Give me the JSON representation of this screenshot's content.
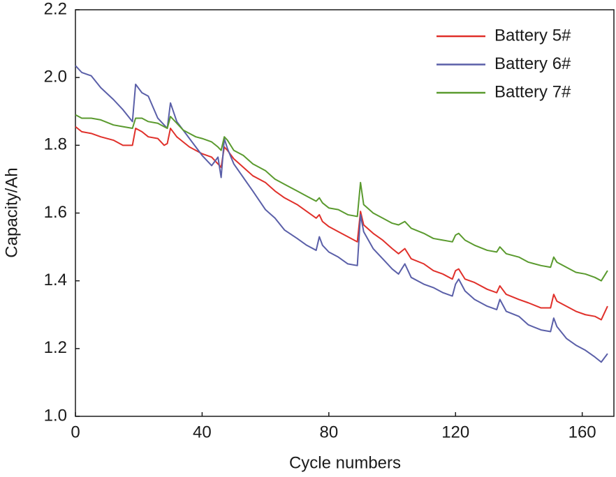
{
  "chart_data": {
    "type": "line",
    "y_label": "Capacity/Ah",
    "x_label": "Cycle numbers",
    "x": [
      0,
      2,
      5,
      8,
      12,
      15,
      18,
      19,
      21,
      23,
      26,
      28,
      29,
      30,
      32,
      34,
      36,
      38,
      40,
      43,
      45,
      46,
      47,
      48,
      50,
      53,
      56,
      60,
      63,
      66,
      70,
      73,
      76,
      77,
      78,
      80,
      83,
      86,
      89,
      90,
      91,
      94,
      97,
      100,
      102,
      104,
      106,
      110,
      113,
      116,
      119,
      120,
      121,
      123,
      126,
      130,
      133,
      134,
      136,
      140,
      143,
      147,
      150,
      151,
      152,
      155,
      158,
      161,
      164,
      166,
      168
    ],
    "series": [
      {
        "name": "Battery 5#",
        "color": "#e0302a",
        "values": [
          1.855,
          1.84,
          1.835,
          1.825,
          1.815,
          1.8,
          1.8,
          1.85,
          1.84,
          1.825,
          1.82,
          1.8,
          1.805,
          1.85,
          1.825,
          1.81,
          1.795,
          1.785,
          1.775,
          1.765,
          1.745,
          1.735,
          1.795,
          1.785,
          1.76,
          1.735,
          1.71,
          1.69,
          1.665,
          1.645,
          1.625,
          1.605,
          1.585,
          1.595,
          1.575,
          1.56,
          1.545,
          1.53,
          1.515,
          1.605,
          1.565,
          1.54,
          1.52,
          1.495,
          1.48,
          1.495,
          1.465,
          1.45,
          1.43,
          1.42,
          1.405,
          1.43,
          1.435,
          1.405,
          1.395,
          1.375,
          1.365,
          1.385,
          1.36,
          1.345,
          1.335,
          1.32,
          1.32,
          1.36,
          1.34,
          1.325,
          1.31,
          1.3,
          1.295,
          1.285,
          1.325
        ]
      },
      {
        "name": "Battery 6#",
        "color": "#5a5fa8",
        "values": [
          2.035,
          2.015,
          2.005,
          1.97,
          1.935,
          1.905,
          1.87,
          1.98,
          1.955,
          1.945,
          1.88,
          1.86,
          1.85,
          1.925,
          1.87,
          1.845,
          1.82,
          1.795,
          1.77,
          1.74,
          1.765,
          1.705,
          1.82,
          1.79,
          1.745,
          1.705,
          1.665,
          1.61,
          1.585,
          1.55,
          1.525,
          1.505,
          1.49,
          1.53,
          1.505,
          1.485,
          1.47,
          1.45,
          1.445,
          1.595,
          1.545,
          1.495,
          1.465,
          1.435,
          1.42,
          1.45,
          1.41,
          1.39,
          1.38,
          1.365,
          1.355,
          1.39,
          1.405,
          1.37,
          1.345,
          1.325,
          1.315,
          1.345,
          1.31,
          1.295,
          1.27,
          1.255,
          1.25,
          1.29,
          1.265,
          1.23,
          1.21,
          1.195,
          1.175,
          1.16,
          1.185
        ]
      },
      {
        "name": "Battery 7#",
        "color": "#5a9a2e",
        "values": [
          1.89,
          1.88,
          1.88,
          1.875,
          1.86,
          1.855,
          1.85,
          1.88,
          1.88,
          1.87,
          1.865,
          1.855,
          1.85,
          1.885,
          1.865,
          1.845,
          1.835,
          1.825,
          1.82,
          1.81,
          1.795,
          1.785,
          1.825,
          1.815,
          1.785,
          1.77,
          1.745,
          1.725,
          1.7,
          1.685,
          1.665,
          1.65,
          1.635,
          1.645,
          1.63,
          1.615,
          1.61,
          1.595,
          1.59,
          1.69,
          1.625,
          1.6,
          1.585,
          1.57,
          1.565,
          1.575,
          1.555,
          1.54,
          1.525,
          1.52,
          1.515,
          1.535,
          1.54,
          1.52,
          1.505,
          1.49,
          1.485,
          1.5,
          1.48,
          1.47,
          1.455,
          1.445,
          1.44,
          1.47,
          1.455,
          1.44,
          1.425,
          1.42,
          1.41,
          1.4,
          1.43
        ]
      }
    ],
    "xlim": [
      0,
      170
    ],
    "ylim": [
      1,
      2.2
    ],
    "xticks": [
      0,
      40,
      80,
      120,
      160
    ],
    "yticks": [
      {
        "value": 1,
        "label": "1.0"
      },
      1.2,
      1.4,
      1.6,
      1.8,
      {
        "value": 2,
        "label": "2.0"
      },
      2.2
    ],
    "legend": "upper right"
  }
}
